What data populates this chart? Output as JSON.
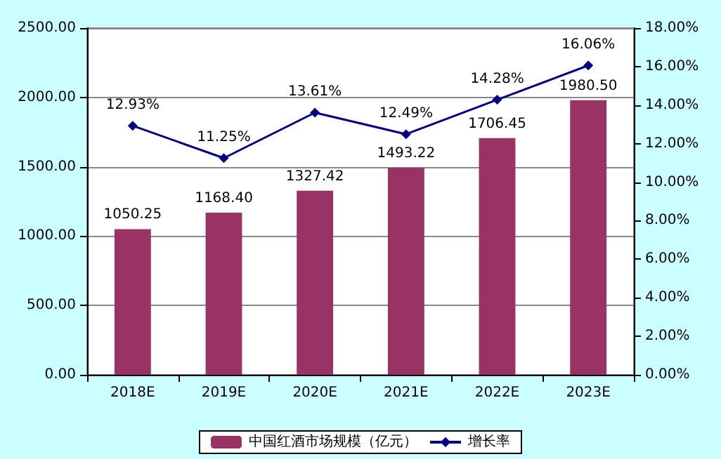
{
  "chart_data": {
    "type": "bar",
    "categories": [
      "2018E",
      "2019E",
      "2020E",
      "2021E",
      "2022E",
      "2023E"
    ],
    "series": [
      {
        "name": "中国红酒市场规模（亿元）",
        "color": "#993366",
        "values": [
          1050.25,
          1168.4,
          1327.42,
          1493.22,
          1706.45,
          1980.5
        ],
        "value_labels": [
          "1050.25",
          "1168.40",
          "1327.42",
          "1493.22",
          "1706.45",
          "1980.50"
        ]
      },
      {
        "name": "增长率",
        "type": "line",
        "axis": "y2",
        "color": "#000080",
        "marker": "diamond",
        "values": [
          12.93,
          11.25,
          13.61,
          12.49,
          14.28,
          16.06
        ],
        "value_labels": [
          "12.93%",
          "11.25%",
          "13.61%",
          "12.49%",
          "14.28%",
          "16.06%"
        ]
      }
    ],
    "ylim": [
      0,
      2500
    ],
    "yticks": [
      {
        "value": 0,
        "label": "0.00"
      },
      {
        "value": 500,
        "label": "500.00"
      },
      {
        "value": 1000,
        "label": "1000.00"
      },
      {
        "value": 1500,
        "label": "1500.00"
      },
      {
        "value": 2000,
        "label": "2000.00"
      },
      {
        "value": 2500,
        "label": "2500.00"
      }
    ],
    "y2lim": [
      0,
      18
    ],
    "y2ticks": [
      {
        "value": 0,
        "label": "0.00%"
      },
      {
        "value": 2,
        "label": "2.00%"
      },
      {
        "value": 4,
        "label": "4.00%"
      },
      {
        "value": 6,
        "label": "6.00%"
      },
      {
        "value": 8,
        "label": "8.00%"
      },
      {
        "value": 10,
        "label": "10.00%"
      },
      {
        "value": 12,
        "label": "12.00%"
      },
      {
        "value": 14,
        "label": "14.00%"
      },
      {
        "value": 16,
        "label": "16.00%"
      },
      {
        "value": 18,
        "label": "18.00%"
      }
    ],
    "grid": "y",
    "legend": "bottom"
  }
}
